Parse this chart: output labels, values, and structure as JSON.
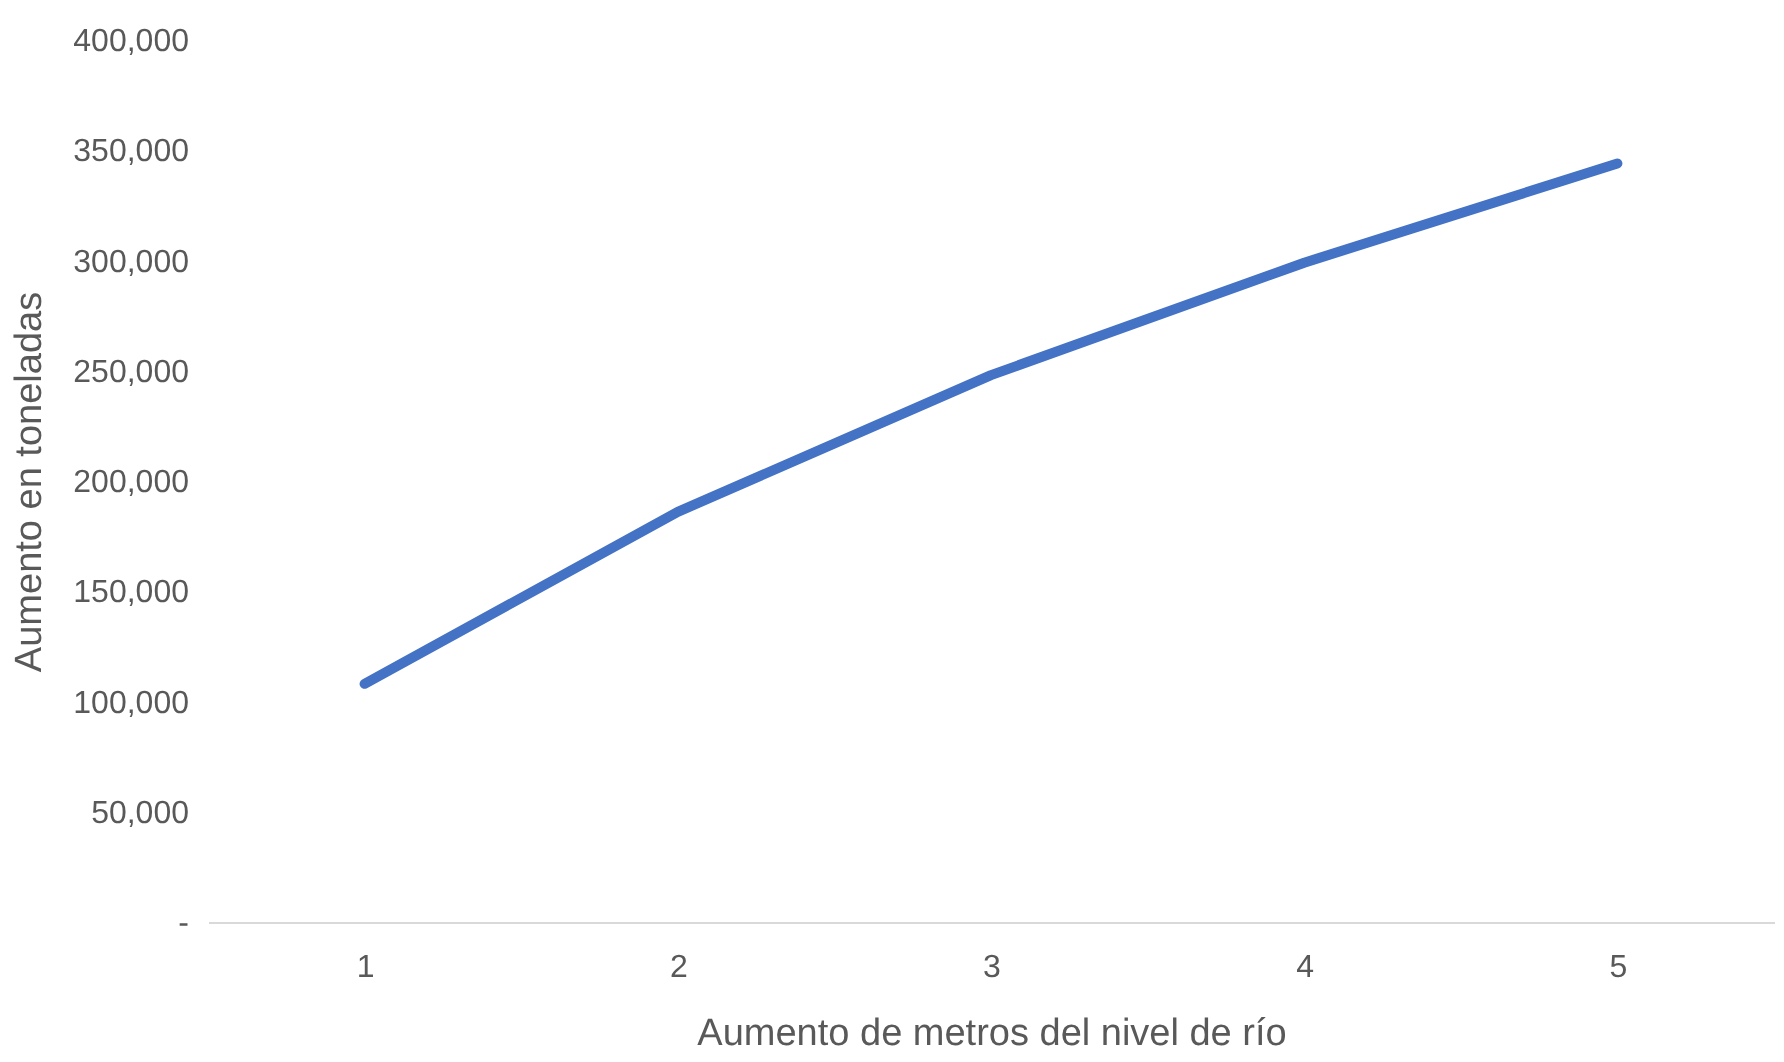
{
  "chart_data": {
    "type": "line",
    "xlabel": "Aumento de metros del nivel de río",
    "ylabel": "Aumento en toneladas",
    "categories": [
      "1",
      "2",
      "3",
      "4",
      "5"
    ],
    "series": [
      {
        "color": "#4472c4",
        "values": [
          108000,
          186000,
          248000,
          299000,
          344000
        ]
      }
    ],
    "ylim": [
      0,
      400000
    ],
    "yticks": [
      {
        "value": 0,
        "label": "-"
      },
      {
        "value": 50000,
        "label": "50,000"
      },
      {
        "value": 100000,
        "label": "100,000"
      },
      {
        "value": 150000,
        "label": "150,000"
      },
      {
        "value": 200000,
        "label": "200,000"
      },
      {
        "value": 250000,
        "label": "250,000"
      },
      {
        "value": 300000,
        "label": "300,000"
      },
      {
        "value": 350000,
        "label": "350,000"
      },
      {
        "value": 400000,
        "label": "400,000"
      }
    ],
    "grid": false,
    "legend": false,
    "marker": "none",
    "line_style": "solid"
  }
}
